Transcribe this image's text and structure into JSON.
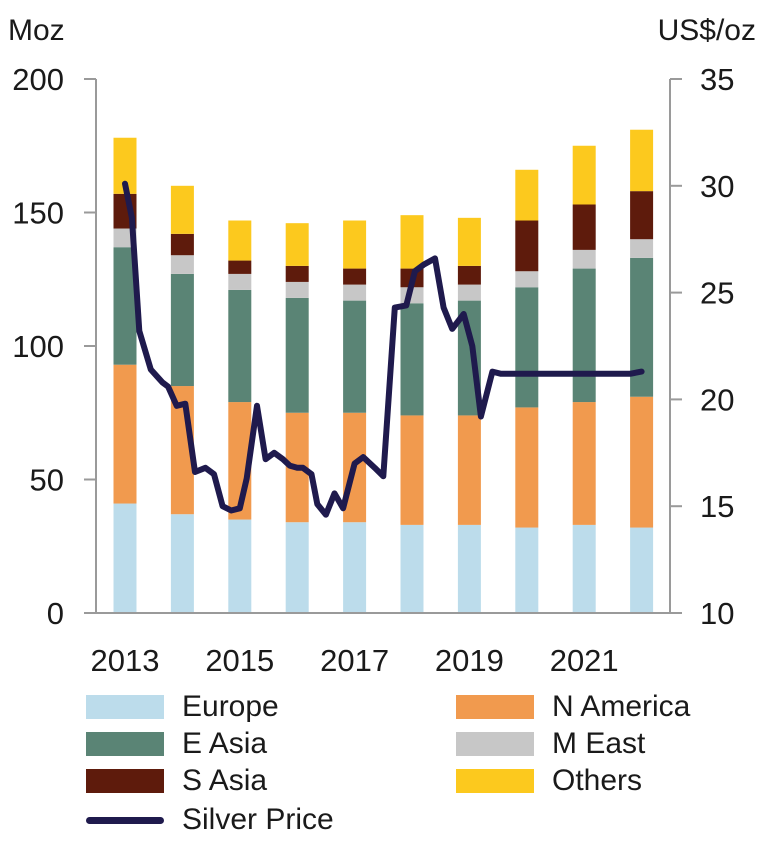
{
  "chart_data": {
    "type": "bar",
    "stacked": true,
    "years": [
      "2013",
      "2014",
      "2015",
      "2016",
      "2017",
      "2018",
      "2019",
      "2020",
      "2021",
      "2022"
    ],
    "x_tick_labels": [
      "2013",
      "2015",
      "2017",
      "2019",
      "2021"
    ],
    "left_axis": {
      "unit": "Moz",
      "ylim": [
        0,
        200
      ],
      "ticks": [
        0,
        50,
        100,
        150,
        200
      ]
    },
    "right_axis": {
      "unit": "US$/oz",
      "ylim": [
        10,
        35
      ],
      "ticks": [
        10,
        15,
        20,
        25,
        30,
        35
      ]
    },
    "series": [
      {
        "name": "Europe",
        "color": "#bcdceb",
        "values": [
          41,
          37,
          35,
          34,
          34,
          33,
          33,
          32,
          33,
          32
        ]
      },
      {
        "name": "N America",
        "color": "#f19a4e",
        "values": [
          52,
          48,
          44,
          41,
          41,
          41,
          41,
          45,
          46,
          49
        ]
      },
      {
        "name": "E Asia",
        "color": "#5a8475",
        "values": [
          44,
          42,
          42,
          43,
          42,
          42,
          43,
          45,
          50,
          52
        ]
      },
      {
        "name": "M East",
        "color": "#c7c7c7",
        "values": [
          7,
          7,
          6,
          6,
          6,
          6,
          6,
          6,
          7,
          7
        ]
      },
      {
        "name": "S Asia",
        "color": "#5e1b0c",
        "values": [
          13,
          8,
          5,
          6,
          6,
          7,
          7,
          19,
          17,
          18
        ]
      },
      {
        "name": "Others",
        "color": "#fcc91e",
        "values": [
          21,
          18,
          15,
          16,
          18,
          20,
          18,
          19,
          22,
          23
        ]
      }
    ],
    "line_series": {
      "name": "Silver Price",
      "color": "#1f1a4d",
      "axis": "right",
      "x": [
        2013.0,
        2013.12,
        2013.25,
        2013.45,
        2013.65,
        2013.75,
        2013.9,
        2014.05,
        2014.22,
        2014.4,
        2014.55,
        2014.7,
        2014.85,
        2015.0,
        2015.12,
        2015.3,
        2015.45,
        2015.6,
        2015.75,
        2015.87,
        2016.0,
        2016.1,
        2016.25,
        2016.35,
        2016.5,
        2016.65,
        2016.8,
        2017.0,
        2017.15,
        2017.35,
        2017.5,
        2017.7,
        2017.9,
        2018.05,
        2018.2,
        2018.4,
        2018.55,
        2018.7,
        2018.9,
        2019.05,
        2019.2,
        2019.4,
        2019.55,
        2019.7,
        2019.85,
        2020.0,
        2020.1,
        2020.25,
        2020.4,
        2020.6,
        2020.75,
        2020.9,
        2021.0,
        2021.15,
        2021.3,
        2021.5,
        2021.65,
        2021.8,
        2022.0
      ],
      "y": [
        30.1,
        28.5,
        23.2,
        21.4,
        20.8,
        20.6,
        19.7,
        19.8,
        16.6,
        16.8,
        16.5,
        15.0,
        14.8,
        14.9,
        16.3,
        19.7,
        17.2,
        17.5,
        17.2,
        16.9,
        16.8,
        16.8,
        16.5,
        15.1,
        14.6,
        15.6,
        14.9,
        17.0,
        17.3,
        16.8,
        16.4,
        24.3,
        24.4,
        26.0,
        26.3,
        26.6,
        24.3,
        23.3,
        24.0,
        22.5,
        19.2,
        21.3,
        21.2,
        21.2,
        21.2,
        21.2,
        21.2,
        21.2,
        21.2,
        21.2,
        21.2,
        21.2,
        21.2,
        21.2,
        21.2,
        21.2,
        21.2,
        21.2,
        21.3
      ]
    }
  }
}
